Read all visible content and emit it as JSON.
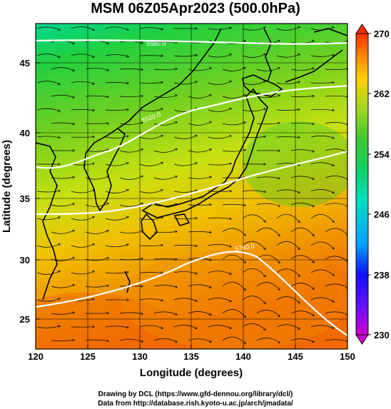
{
  "title": "MSM 06Z05Apr2023 (500.0hPa)",
  "xlabel": "Longitude (degrees)",
  "ylabel": "Latitude  (degrees)",
  "credit_line1": "Drawing by DCL (https://www.gfd-dennou.org/library/dcl/)",
  "credit_line2": "Data from http://database.rish.kyoto-u.ac.jp/arch/jmadata/",
  "xticks": [
    "120",
    "125",
    "130",
    "135",
    "140",
    "145",
    "150"
  ],
  "yticks": [
    "25",
    "30",
    "35",
    "40",
    "45"
  ],
  "colorbar": {
    "ticks": [
      "270",
      "262",
      "254",
      "246",
      "238",
      "230"
    ],
    "min": 230,
    "max": 270,
    "colors": [
      "#d000d0",
      "#1010ff",
      "#00a0ff",
      "#00e0c0",
      "#00d060",
      "#30c030",
      "#90d820",
      "#ffe000",
      "#ff9000",
      "#ff3000"
    ]
  },
  "contour_labels": [
    "5580.0",
    "5520.0",
    "5760.0"
  ],
  "chart_data": {
    "type": "heatmap",
    "variable": "500.0hPa",
    "xlim": [
      120,
      150
    ],
    "ylim": [
      22.5,
      48
    ],
    "x_ticks": [
      120,
      125,
      130,
      135,
      140,
      145,
      150
    ],
    "y_ticks": [
      25,
      30,
      35,
      40,
      45
    ],
    "colorbar_range": [
      230,
      270
    ],
    "colorbar_ticks": [
      230,
      238,
      246,
      254,
      262,
      270
    ],
    "overlays": [
      "streamlines",
      "height contours",
      "coastlines",
      "lat/lon grid"
    ]
  }
}
